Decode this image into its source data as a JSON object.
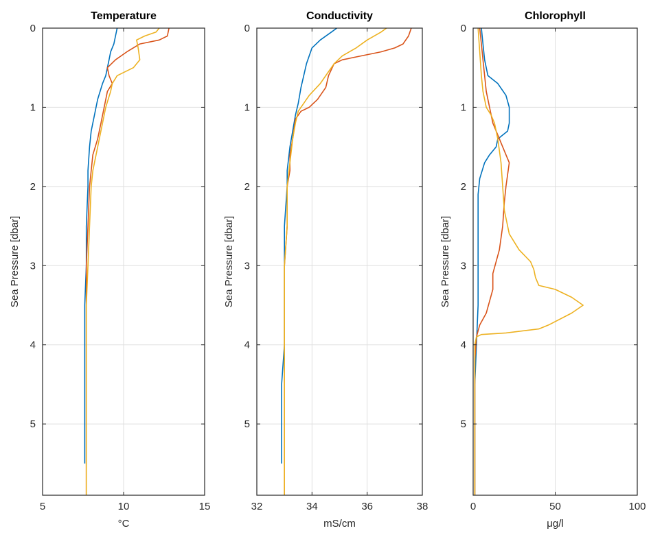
{
  "chart_data": [
    {
      "type": "line",
      "title": "Temperature",
      "xlabel": "°C",
      "ylabel": "Sea Pressure [dbar]",
      "xlim": [
        5,
        15
      ],
      "ylim": [
        0,
        5.9
      ],
      "y_reversed": true,
      "xticks": [
        5,
        10,
        15
      ],
      "yticks": [
        0,
        1,
        2,
        3,
        4,
        5
      ],
      "grid": true,
      "series": [
        {
          "color": "#0072BD",
          "points": [
            [
              9.6,
              0
            ],
            [
              9.5,
              0.1
            ],
            [
              9.4,
              0.2
            ],
            [
              9.2,
              0.3
            ],
            [
              9.1,
              0.4
            ],
            [
              9.0,
              0.5
            ],
            [
              8.9,
              0.6
            ],
            [
              8.7,
              0.7
            ],
            [
              8.4,
              0.9
            ],
            [
              8.2,
              1.1
            ],
            [
              8.0,
              1.3
            ],
            [
              7.9,
              1.5
            ],
            [
              7.8,
              1.8
            ],
            [
              7.8,
              2.0
            ],
            [
              7.7,
              2.5
            ],
            [
              7.7,
              3.0
            ],
            [
              7.6,
              3.5
            ],
            [
              7.6,
              4.0
            ],
            [
              7.6,
              4.5
            ],
            [
              7.6,
              5.0
            ],
            [
              7.6,
              5.5
            ]
          ]
        },
        {
          "color": "#D95319",
          "points": [
            [
              12.8,
              0
            ],
            [
              12.7,
              0.1
            ],
            [
              12.2,
              0.15
            ],
            [
              11.0,
              0.2
            ],
            [
              10.2,
              0.3
            ],
            [
              9.5,
              0.4
            ],
            [
              9.0,
              0.5
            ],
            [
              9.1,
              0.6
            ],
            [
              9.3,
              0.7
            ],
            [
              9.0,
              0.8
            ],
            [
              8.8,
              1.0
            ],
            [
              8.6,
              1.2
            ],
            [
              8.4,
              1.4
            ],
            [
              8.1,
              1.6
            ],
            [
              8.0,
              1.8
            ],
            [
              7.9,
              2.0
            ],
            [
              7.8,
              2.5
            ],
            [
              7.7,
              3.0
            ],
            [
              7.7,
              3.5
            ],
            [
              7.7,
              4.0
            ],
            [
              7.7,
              5.0
            ],
            [
              7.7,
              5.9
            ]
          ]
        },
        {
          "color": "#EDB120",
          "points": [
            [
              12.2,
              0
            ],
            [
              12.0,
              0.05
            ],
            [
              11.3,
              0.1
            ],
            [
              10.8,
              0.15
            ],
            [
              10.9,
              0.25
            ],
            [
              11.0,
              0.4
            ],
            [
              10.6,
              0.5
            ],
            [
              9.6,
              0.6
            ],
            [
              9.3,
              0.7
            ],
            [
              9.2,
              0.8
            ],
            [
              8.9,
              1.0
            ],
            [
              8.7,
              1.2
            ],
            [
              8.5,
              1.4
            ],
            [
              8.3,
              1.6
            ],
            [
              8.1,
              1.8
            ],
            [
              8.0,
              2.0
            ],
            [
              7.9,
              2.5
            ],
            [
              7.8,
              3.0
            ],
            [
              7.7,
              3.5
            ],
            [
              7.7,
              4.0
            ],
            [
              7.7,
              4.5
            ],
            [
              7.7,
              5.0
            ],
            [
              7.7,
              5.5
            ],
            [
              7.7,
              5.9
            ]
          ]
        }
      ]
    },
    {
      "type": "line",
      "title": "Conductivity",
      "xlabel": "mS/cm",
      "ylabel": "Sea Pressure [dbar]",
      "xlim": [
        32,
        38
      ],
      "ylim": [
        0,
        5.9
      ],
      "y_reversed": true,
      "xticks": [
        32,
        34,
        36,
        38
      ],
      "yticks": [
        0,
        1,
        2,
        3,
        4,
        5
      ],
      "grid": true,
      "series": [
        {
          "color": "#0072BD",
          "points": [
            [
              34.9,
              0
            ],
            [
              34.7,
              0.05
            ],
            [
              34.3,
              0.15
            ],
            [
              34.0,
              0.25
            ],
            [
              33.9,
              0.35
            ],
            [
              33.8,
              0.45
            ],
            [
              33.7,
              0.6
            ],
            [
              33.6,
              0.75
            ],
            [
              33.5,
              0.95
            ],
            [
              33.4,
              1.1
            ],
            [
              33.3,
              1.3
            ],
            [
              33.2,
              1.5
            ],
            [
              33.1,
              1.8
            ],
            [
              33.1,
              2.0
            ],
            [
              33.0,
              2.5
            ],
            [
              33.0,
              3.0
            ],
            [
              33.0,
              3.5
            ],
            [
              33.0,
              4.0
            ],
            [
              32.9,
              4.5
            ],
            [
              32.9,
              5.0
            ],
            [
              32.9,
              5.5
            ]
          ]
        },
        {
          "color": "#D95319",
          "points": [
            [
              37.6,
              0
            ],
            [
              37.5,
              0.1
            ],
            [
              37.3,
              0.2
            ],
            [
              37.0,
              0.25
            ],
            [
              36.5,
              0.3
            ],
            [
              35.8,
              0.35
            ],
            [
              35.1,
              0.4
            ],
            [
              34.8,
              0.45
            ],
            [
              34.6,
              0.6
            ],
            [
              34.5,
              0.75
            ],
            [
              34.2,
              0.9
            ],
            [
              33.9,
              1.0
            ],
            [
              33.6,
              1.05
            ],
            [
              33.4,
              1.15
            ],
            [
              33.3,
              1.4
            ],
            [
              33.2,
              1.6
            ],
            [
              33.2,
              1.8
            ],
            [
              33.1,
              2.0
            ],
            [
              33.1,
              2.5
            ],
            [
              33.0,
              3.0
            ],
            [
              33.0,
              3.5
            ],
            [
              33.0,
              4.0
            ],
            [
              33.0,
              5.0
            ],
            [
              33.0,
              5.9
            ]
          ]
        },
        {
          "color": "#EDB120",
          "points": [
            [
              36.7,
              0
            ],
            [
              36.5,
              0.05
            ],
            [
              36.0,
              0.15
            ],
            [
              35.6,
              0.25
            ],
            [
              35.1,
              0.35
            ],
            [
              34.8,
              0.45
            ],
            [
              34.6,
              0.55
            ],
            [
              34.3,
              0.7
            ],
            [
              33.9,
              0.85
            ],
            [
              33.7,
              0.95
            ],
            [
              33.5,
              1.05
            ],
            [
              33.4,
              1.2
            ],
            [
              33.3,
              1.4
            ],
            [
              33.2,
              1.7
            ],
            [
              33.1,
              2.0
            ],
            [
              33.1,
              2.5
            ],
            [
              33.0,
              3.0
            ],
            [
              33.0,
              3.5
            ],
            [
              33.0,
              4.0
            ],
            [
              33.0,
              4.5
            ],
            [
              33.0,
              5.0
            ],
            [
              33.0,
              5.5
            ],
            [
              33.0,
              5.9
            ]
          ]
        }
      ]
    },
    {
      "type": "line",
      "title": "Chlorophyll",
      "xlabel": "μg/l",
      "ylabel": "Sea Pressure [dbar]",
      "xlim": [
        0,
        100
      ],
      "ylim": [
        0,
        5.9
      ],
      "y_reversed": true,
      "xticks": [
        0,
        50,
        100
      ],
      "yticks": [
        0,
        1,
        2,
        3,
        4,
        5
      ],
      "grid": true,
      "series": [
        {
          "color": "#0072BD",
          "points": [
            [
              5,
              0
            ],
            [
              6,
              0.2
            ],
            [
              7,
              0.4
            ],
            [
              9,
              0.6
            ],
            [
              15,
              0.7
            ],
            [
              20,
              0.85
            ],
            [
              22,
              1.0
            ],
            [
              22,
              1.2
            ],
            [
              21,
              1.3
            ],
            [
              15,
              1.4
            ],
            [
              14,
              1.5
            ],
            [
              10,
              1.6
            ],
            [
              7,
              1.7
            ],
            [
              4,
              1.9
            ],
            [
              3,
              2.1
            ],
            [
              3,
              2.5
            ],
            [
              3,
              3.0
            ],
            [
              3,
              3.5
            ],
            [
              2,
              4.0
            ],
            [
              1,
              4.5
            ],
            [
              1,
              5.0
            ],
            [
              1,
              5.9
            ]
          ]
        },
        {
          "color": "#D95319",
          "points": [
            [
              4,
              0
            ],
            [
              5,
              0.2
            ],
            [
              6,
              0.4
            ],
            [
              7,
              0.6
            ],
            [
              8,
              0.8
            ],
            [
              10,
              1.0
            ],
            [
              12,
              1.2
            ],
            [
              15,
              1.35
            ],
            [
              18,
              1.5
            ],
            [
              20,
              1.6
            ],
            [
              22,
              1.7
            ],
            [
              20,
              2.0
            ],
            [
              19,
              2.2
            ],
            [
              18,
              2.5
            ],
            [
              16,
              2.8
            ],
            [
              12,
              3.1
            ],
            [
              12,
              3.3
            ],
            [
              10,
              3.45
            ],
            [
              8,
              3.6
            ],
            [
              4,
              3.75
            ],
            [
              2,
              3.9
            ],
            [
              1,
              4.2
            ],
            [
              1,
              5.0
            ],
            [
              1,
              5.9
            ]
          ]
        },
        {
          "color": "#EDB120",
          "points": [
            [
              3,
              0
            ],
            [
              4,
              0.3
            ],
            [
              5,
              0.6
            ],
            [
              6,
              0.8
            ],
            [
              8,
              1.0
            ],
            [
              11,
              1.1
            ],
            [
              13,
              1.2
            ],
            [
              15,
              1.4
            ],
            [
              17,
              1.7
            ],
            [
              18,
              2.0
            ],
            [
              19,
              2.3
            ],
            [
              22,
              2.6
            ],
            [
              28,
              2.8
            ],
            [
              35,
              2.95
            ],
            [
              37,
              3.05
            ],
            [
              38,
              3.15
            ],
            [
              40,
              3.25
            ],
            [
              50,
              3.3
            ],
            [
              60,
              3.4
            ],
            [
              67,
              3.5
            ],
            [
              60,
              3.6
            ],
            [
              46,
              3.75
            ],
            [
              40,
              3.8
            ],
            [
              20,
              3.85
            ],
            [
              5,
              3.87
            ],
            [
              2,
              3.9
            ],
            [
              1,
              4.0
            ],
            [
              1,
              4.5
            ],
            [
              1,
              5.0
            ],
            [
              1,
              5.9
            ]
          ]
        }
      ]
    }
  ]
}
